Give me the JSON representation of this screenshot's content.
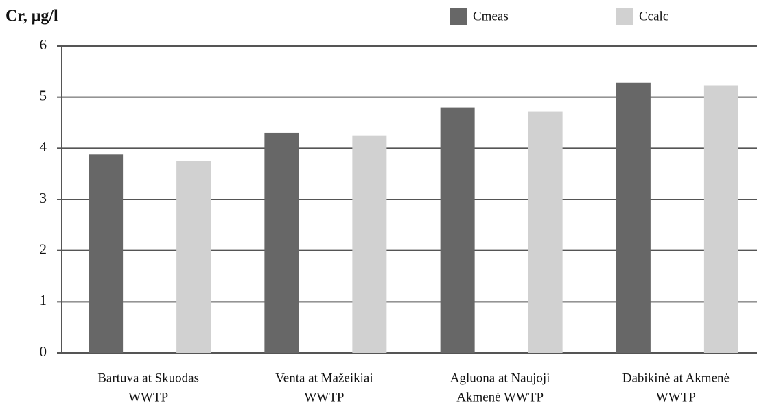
{
  "chart_data": {
    "type": "bar",
    "y_label": "Cr, μg/l",
    "categories": [
      [
        "Bartuva at Skuodas",
        "WWTP"
      ],
      [
        "Venta at Mažeikiai",
        "WWTP"
      ],
      [
        "Agluona at  Naujoji",
        "Akmenė WWTP"
      ],
      [
        "Dabikinė at Akmenė",
        "WWTP"
      ]
    ],
    "series": [
      {
        "name": "Cmeas",
        "color": "#676767",
        "values": [
          3.88,
          4.3,
          4.8,
          5.28
        ]
      },
      {
        "name": "Ccalc",
        "color": "#d1d1d1",
        "values": [
          3.75,
          4.25,
          4.72,
          5.23
        ]
      }
    ],
    "ylim": [
      0,
      6
    ],
    "yticks": [
      0,
      1,
      2,
      3,
      4,
      5,
      6
    ],
    "grid": true
  }
}
